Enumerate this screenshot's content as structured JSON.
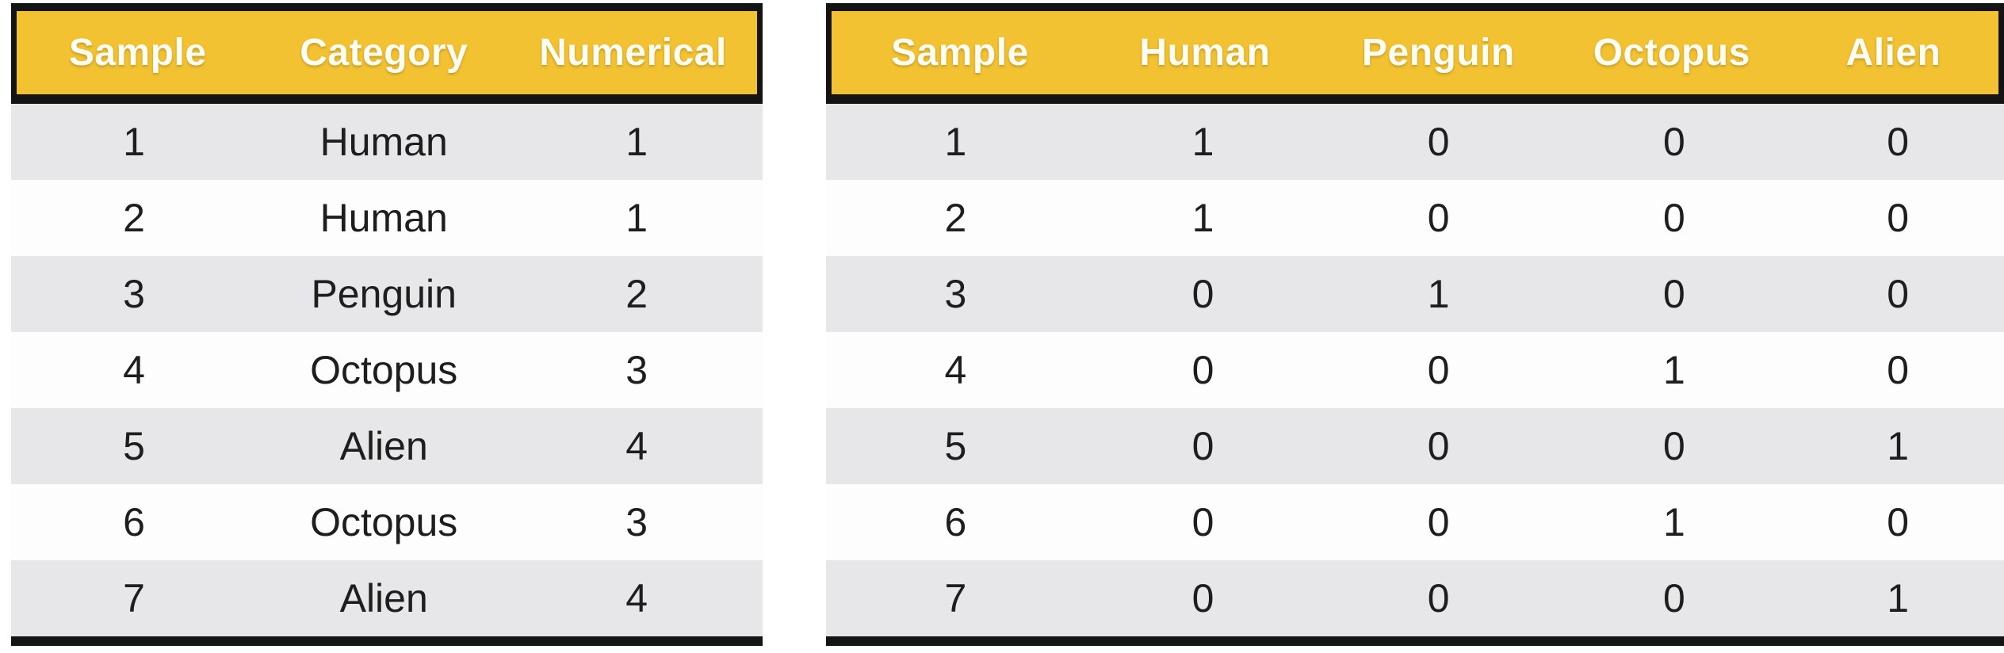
{
  "colors": {
    "header_bg": "#F2C233",
    "header_text": "#FFFDF2",
    "header_border": "#141414",
    "row_alt": "#E7E7E9",
    "row_base": "#FDFDFE",
    "cell_text": "#1E1E1E",
    "page_bg": "#FFFFFF"
  },
  "chart_data": [
    {
      "type": "table",
      "position": "left",
      "columns": [
        "Sample",
        "Category",
        "Numerical"
      ],
      "rows": [
        [
          "1",
          "Human",
          "1"
        ],
        [
          "2",
          "Human",
          "1"
        ],
        [
          "3",
          "Penguin",
          "2"
        ],
        [
          "4",
          "Octopus",
          "3"
        ],
        [
          "5",
          "Alien",
          "4"
        ],
        [
          "6",
          "Octopus",
          "3"
        ],
        [
          "7",
          "Alien",
          "4"
        ]
      ]
    },
    {
      "type": "table",
      "position": "right",
      "columns": [
        "Sample",
        "Human",
        "Penguin",
        "Octopus",
        "Alien"
      ],
      "rows": [
        [
          "1",
          "1",
          "0",
          "0",
          "0"
        ],
        [
          "2",
          "1",
          "0",
          "0",
          "0"
        ],
        [
          "3",
          "0",
          "1",
          "0",
          "0"
        ],
        [
          "4",
          "0",
          "0",
          "1",
          "0"
        ],
        [
          "5",
          "0",
          "0",
          "0",
          "1"
        ],
        [
          "6",
          "0",
          "0",
          "1",
          "0"
        ],
        [
          "7",
          "0",
          "0",
          "0",
          "1"
        ]
      ]
    }
  ]
}
